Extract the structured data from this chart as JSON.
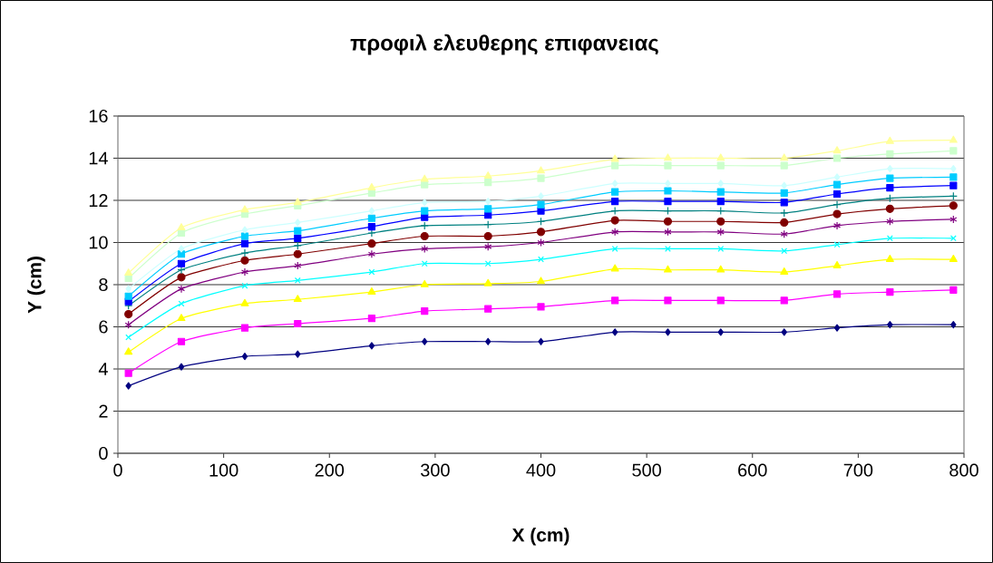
{
  "chart_data": {
    "type": "line",
    "title": "προφιλ ελευθερης επιφανειας",
    "xlabel": "X (cm)",
    "ylabel": "Y (cm)",
    "x": [
      10,
      60,
      120,
      170,
      240,
      290,
      350,
      400,
      470,
      520,
      570,
      630,
      680,
      730,
      790
    ],
    "xlim": [
      0,
      800
    ],
    "xticks": [
      0,
      100,
      200,
      300,
      400,
      500,
      600,
      700,
      800
    ],
    "ylim": [
      0,
      16
    ],
    "yticks": [
      0,
      2,
      4,
      6,
      8,
      10,
      12,
      14,
      16
    ],
    "grid": "y",
    "series": [
      {
        "color": "#000080",
        "marker": "diamond",
        "values": [
          3.2,
          4.1,
          4.6,
          4.7,
          5.1,
          5.3,
          5.3,
          5.3,
          5.75,
          5.75,
          5.75,
          5.75,
          5.95,
          6.1,
          6.1
        ]
      },
      {
        "color": "#ff00ff",
        "marker": "square",
        "values": [
          3.8,
          5.3,
          5.95,
          6.15,
          6.4,
          6.75,
          6.85,
          6.95,
          7.25,
          7.25,
          7.25,
          7.25,
          7.55,
          7.65,
          7.75
        ]
      },
      {
        "color": "#ffff00",
        "marker": "triangle",
        "values": [
          4.8,
          6.4,
          7.1,
          7.3,
          7.65,
          8.0,
          8.05,
          8.15,
          8.75,
          8.7,
          8.7,
          8.6,
          8.9,
          9.2,
          9.2
        ]
      },
      {
        "color": "#00ffff",
        "marker": "cross",
        "values": [
          5.5,
          7.1,
          7.95,
          8.2,
          8.6,
          9.0,
          9.0,
          9.2,
          9.7,
          9.7,
          9.7,
          9.6,
          9.9,
          10.2,
          10.2
        ]
      },
      {
        "color": "#800080",
        "marker": "cross",
        "values": [
          6.1,
          7.8,
          8.6,
          8.9,
          9.45,
          9.7,
          9.8,
          10.0,
          10.5,
          10.5,
          10.5,
          10.4,
          10.8,
          11.0,
          11.1
        ]
      },
      {
        "color": "#800000",
        "marker": "circle",
        "values": [
          6.6,
          8.35,
          9.15,
          9.45,
          9.95,
          10.3,
          10.3,
          10.5,
          11.05,
          11.0,
          11.0,
          10.95,
          11.35,
          11.6,
          11.75
        ]
      },
      {
        "color": "#008080",
        "marker": "plus",
        "values": [
          7.0,
          8.7,
          9.5,
          9.85,
          10.45,
          10.8,
          10.85,
          11.0,
          11.5,
          11.5,
          11.5,
          11.4,
          11.8,
          12.1,
          12.2
        ]
      },
      {
        "color": "#0000ff",
        "marker": "square",
        "values": [
          7.2,
          9.0,
          9.95,
          10.2,
          10.75,
          11.2,
          11.3,
          11.5,
          11.95,
          11.95,
          11.95,
          11.9,
          12.3,
          12.6,
          12.7
        ]
      },
      {
        "color": "#00ccff",
        "marker": "square",
        "values": [
          7.45,
          9.45,
          10.3,
          10.55,
          11.15,
          11.5,
          11.6,
          11.8,
          12.4,
          12.45,
          12.4,
          12.35,
          12.75,
          13.05,
          13.1
        ]
      },
      {
        "color": "#ccffff",
        "marker": "diamond",
        "values": [
          7.8,
          9.7,
          10.6,
          10.95,
          11.5,
          11.9,
          11.95,
          12.2,
          12.8,
          12.8,
          12.8,
          12.7,
          13.1,
          13.5,
          13.5
        ]
      },
      {
        "color": "#ccffcc",
        "marker": "square",
        "values": [
          8.3,
          10.45,
          11.35,
          11.75,
          12.35,
          12.75,
          12.85,
          13.05,
          13.65,
          13.65,
          13.65,
          13.65,
          14.0,
          14.2,
          14.35
        ]
      },
      {
        "color": "#ffff99",
        "marker": "triangle",
        "values": [
          8.55,
          10.7,
          11.55,
          11.9,
          12.6,
          13.0,
          13.15,
          13.4,
          13.95,
          14.0,
          14.0,
          14.0,
          14.35,
          14.8,
          14.85
        ]
      }
    ]
  }
}
